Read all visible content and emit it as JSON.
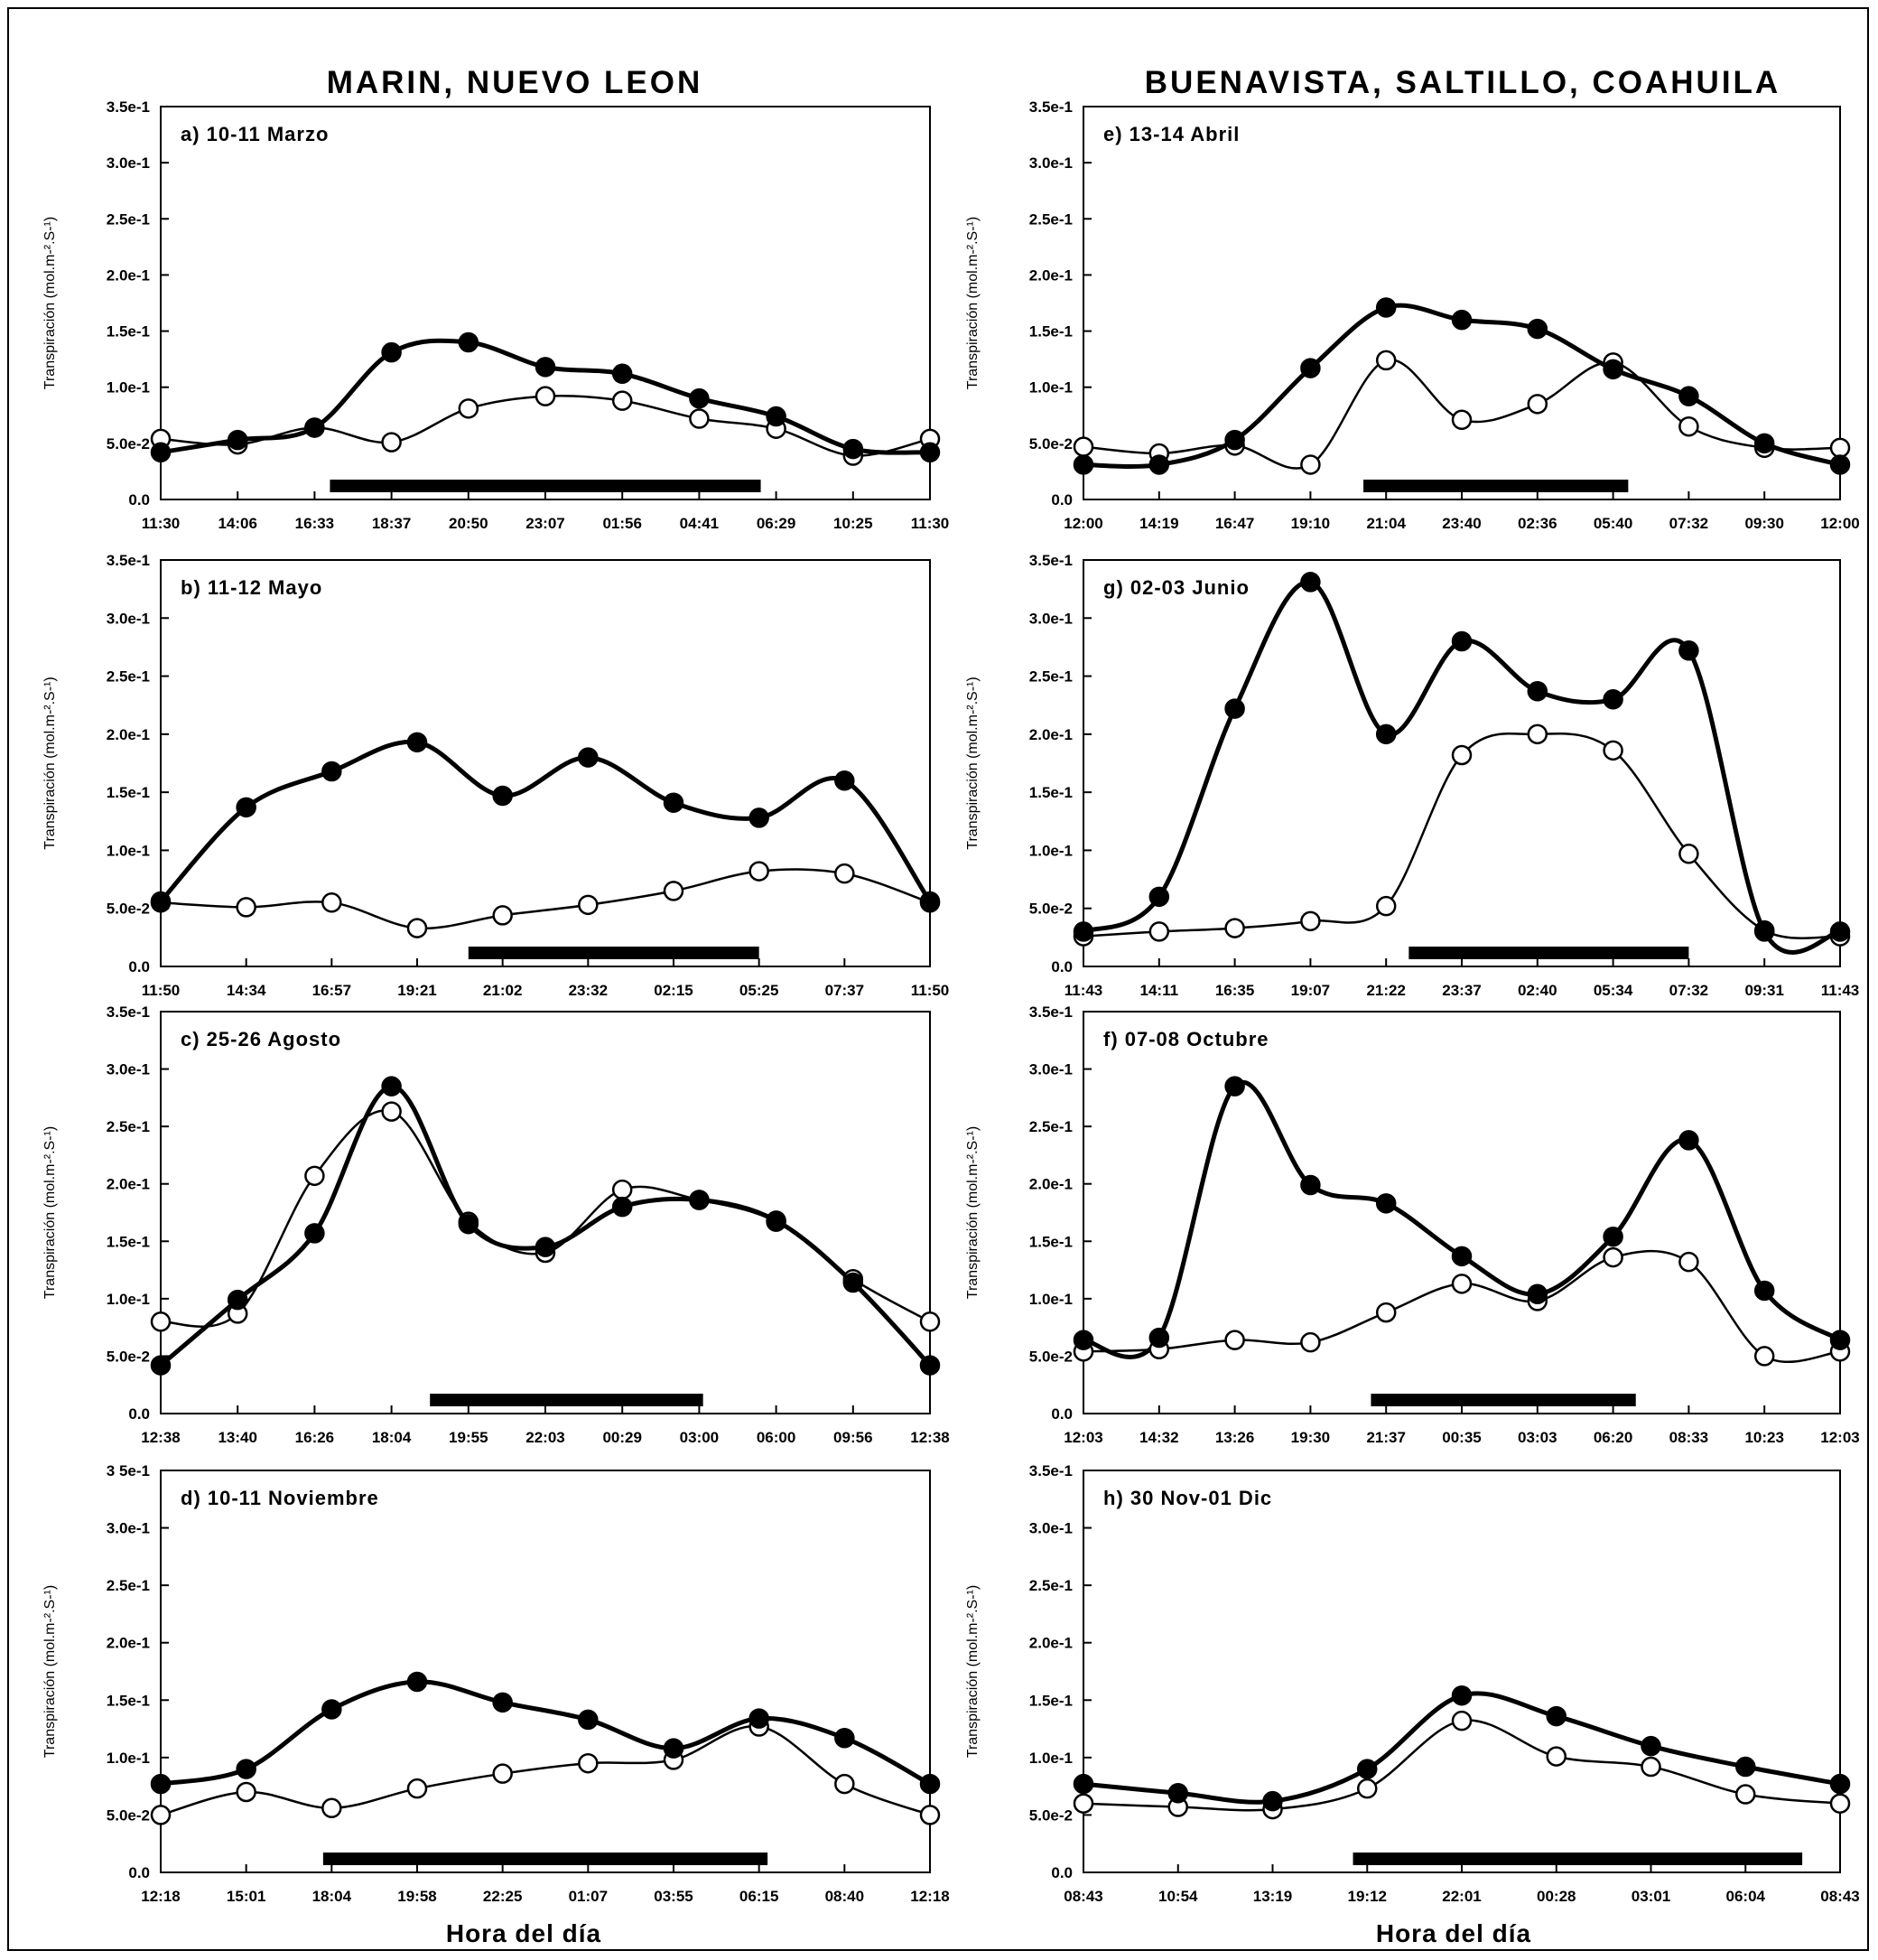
{
  "figure": {
    "left_column_title": "MARIN, NUEVO LEON",
    "right_column_title": "BUENAVISTA, SALTILLO, COAHUILA",
    "xlabel_left": "Hora del día",
    "xlabel_right": "Hora del día"
  },
  "chart_data": [
    {
      "id": "a",
      "type": "line",
      "title": "a) 10-11 Marzo",
      "ylabel": "Transpiración (mol.m-².S-¹)",
      "ylim": [
        0,
        0.35
      ],
      "yticks": [
        "0.0",
        "5.0e-2",
        "1.0e-1",
        "1.5e-1",
        "2.0e-1",
        "2.5e-1",
        "3.0e-1",
        "3.5e-1"
      ],
      "categories": [
        "11:30",
        "14:06",
        "16:33",
        "18:37",
        "20:50",
        "23:07",
        "01:56",
        "04:41",
        "06:29",
        "10:25",
        "11:30"
      ],
      "night_bar": [
        2.2,
        7.8
      ],
      "series": [
        {
          "marker": "filled",
          "values": [
            0.042,
            0.053,
            0.064,
            0.131,
            0.14,
            0.118,
            0.112,
            0.09,
            0.074,
            0.045,
            0.042
          ]
        },
        {
          "marker": "open",
          "values": [
            0.054,
            0.049,
            0.064,
            0.051,
            0.081,
            0.092,
            0.088,
            0.072,
            0.063,
            0.039,
            0.054
          ]
        }
      ]
    },
    {
      "id": "b",
      "type": "line",
      "title": "b) 11-12 Mayo",
      "ylabel": "Transpiración (mol.m-².S-¹)",
      "ylim": [
        0,
        0.35
      ],
      "yticks": [
        "0.0",
        "5.0e-2",
        "1.0e-1",
        "1.5e-1",
        "2.0e-1",
        "2.5e-1",
        "3.0e-1",
        "3.5e-1"
      ],
      "categories": [
        "11:50",
        "14:34",
        "16:57",
        "19:21",
        "21:02",
        "23:32",
        "02:15",
        "05:25",
        "07:37",
        "11:50"
      ],
      "night_bar": [
        3.6,
        7.0
      ],
      "series": [
        {
          "marker": "filled",
          "values": [
            0.056,
            0.137,
            0.168,
            0.193,
            0.147,
            0.18,
            0.141,
            0.128,
            0.16,
            0.056
          ]
        },
        {
          "marker": "open",
          "values": [
            0.055,
            0.051,
            0.055,
            0.033,
            0.044,
            0.053,
            0.065,
            0.082,
            0.08,
            0.055
          ]
        }
      ]
    },
    {
      "id": "c",
      "type": "line",
      "title": "c) 25-26 Agosto",
      "ylabel": "Transpiración (mol.m-².S-¹)",
      "ylim": [
        0,
        0.35
      ],
      "yticks": [
        "0.0",
        "5.0e-2",
        "1.0e-1",
        "1.5e-1",
        "2.0e-1",
        "2.5e-1",
        "3.0e-1",
        "3.5e-1"
      ],
      "categories": [
        "12:38",
        "13:40",
        "16:26",
        "18:04",
        "19:55",
        "22:03",
        "00:29",
        "03:00",
        "06:00",
        "09:56",
        "12:38"
      ],
      "night_bar": [
        3.5,
        7.05
      ],
      "series": [
        {
          "marker": "filled",
          "values": [
            0.042,
            0.099,
            0.157,
            0.285,
            0.165,
            0.145,
            0.18,
            0.186,
            0.168,
            0.114,
            0.042
          ]
        },
        {
          "marker": "open",
          "values": [
            0.08,
            0.087,
            0.207,
            0.263,
            0.167,
            0.14,
            0.195,
            0.186,
            0.167,
            0.117,
            0.08
          ]
        }
      ]
    },
    {
      "id": "d",
      "type": "line",
      "title": "d) 10-11 Noviembre",
      "ylabel": "Transpiración (mol.m-².S-¹)",
      "ylim": [
        0,
        0.35
      ],
      "yticks": [
        "0.0",
        "5.0e-2",
        "1.0e-1",
        "1.5e-1",
        "2.0e-1",
        "2.5e-1",
        "3.0e-1",
        "3 5e-1"
      ],
      "categories": [
        "12:18",
        "15:01",
        "18:04",
        "19:58",
        "22:25",
        "01:07",
        "03:55",
        "06:15",
        "08:40",
        "12:18"
      ],
      "night_bar": [
        1.9,
        7.1
      ],
      "series": [
        {
          "marker": "filled",
          "values": [
            0.077,
            0.09,
            0.142,
            0.166,
            0.148,
            0.133,
            0.108,
            0.134,
            0.117,
            0.077
          ]
        },
        {
          "marker": "open",
          "values": [
            0.05,
            0.07,
            0.056,
            0.073,
            0.086,
            0.095,
            0.098,
            0.127,
            0.077,
            0.05
          ]
        }
      ]
    },
    {
      "id": "e",
      "type": "line",
      "title": "e) 13-14 Abril",
      "ylabel": "Transpiración (mol.m-².S-¹)",
      "ylim": [
        0,
        0.35
      ],
      "yticks": [
        "0.0",
        "5.0e-2",
        "1.0e-1",
        "1.5e-1",
        "2.0e-1",
        "2.5e-1",
        "3.0e-1",
        "3.5e-1"
      ],
      "categories": [
        "12:00",
        "14:19",
        "16:47",
        "19:10",
        "21:04",
        "23:40",
        "02:36",
        "05:40",
        "07:32",
        "09:30",
        "12:00"
      ],
      "night_bar": [
        3.7,
        7.2
      ],
      "series": [
        {
          "marker": "filled",
          "values": [
            0.031,
            0.031,
            0.053,
            0.117,
            0.171,
            0.16,
            0.152,
            0.116,
            0.092,
            0.05,
            0.031
          ]
        },
        {
          "marker": "open",
          "values": [
            0.047,
            0.041,
            0.048,
            0.031,
            0.124,
            0.071,
            0.085,
            0.122,
            0.065,
            0.046,
            0.046
          ]
        }
      ]
    },
    {
      "id": "g",
      "type": "line",
      "title": "g)  02-03 Junio",
      "ylabel": "Transpiración (mol.m-².S-¹)",
      "ylim": [
        0,
        0.35
      ],
      "yticks": [
        "0.0",
        "5.0e-2",
        "1.0e-1",
        "1.5e-1",
        "2.0e-1",
        "2.5e-1",
        "3.0e-1",
        "3.5e-1"
      ],
      "categories": [
        "11:43",
        "14:11",
        "16:35",
        "19:07",
        "21:22",
        "23:37",
        "02:40",
        "05:34",
        "07:32",
        "09:31",
        "11:43"
      ],
      "night_bar": [
        4.3,
        8.0
      ],
      "series": [
        {
          "marker": "filled",
          "values": [
            0.03,
            0.06,
            0.222,
            0.331,
            0.2,
            0.28,
            0.237,
            0.23,
            0.272,
            0.03,
            0.03
          ]
        },
        {
          "marker": "open",
          "values": [
            0.026,
            0.03,
            0.033,
            0.039,
            0.052,
            0.182,
            0.2,
            0.186,
            0.097,
            0.031,
            0.026
          ]
        }
      ]
    },
    {
      "id": "f",
      "type": "line",
      "title": "f)  07-08 Octubre",
      "ylabel": "Transpiración (mol.m-².S-¹)",
      "ylim": [
        0,
        0.35
      ],
      "yticks": [
        "0.0",
        "5.0e-2",
        "1.0e-1",
        "1.5e-1",
        "2.0e-1",
        "2.5e-1",
        "3.0e-1",
        "3.5e-1"
      ],
      "categories": [
        "12:03",
        "14:32",
        "13:26",
        "19:30",
        "21:37",
        "00:35",
        "03:03",
        "06:20",
        "08:33",
        "10:23",
        "12:03"
      ],
      "night_bar": [
        3.8,
        7.3
      ],
      "series": [
        {
          "marker": "filled",
          "values": [
            0.064,
            0.066,
            0.285,
            0.199,
            0.183,
            0.137,
            0.104,
            0.154,
            0.238,
            0.107,
            0.064
          ]
        },
        {
          "marker": "open",
          "values": [
            0.054,
            0.056,
            0.064,
            0.062,
            0.088,
            0.113,
            0.098,
            0.136,
            0.132,
            0.05,
            0.054
          ]
        }
      ]
    },
    {
      "id": "h",
      "type": "line",
      "title": "h) 30 Nov-01 Dic",
      "ylabel": "Transpiración (mol.m-².S-¹)",
      "ylim": [
        0,
        0.35
      ],
      "yticks": [
        "0.0",
        "5.0e-2",
        "1.0e-1",
        "1.5e-1",
        "2.0e-1",
        "2.5e-1",
        "3.0e-1",
        "3.5e-1"
      ],
      "categories": [
        "08:43",
        "10:54",
        "13:19",
        "19:12",
        "22:01",
        "00:28",
        "03:01",
        "06:04",
        "08:43"
      ],
      "night_bar": [
        2.85,
        7.6
      ],
      "series": [
        {
          "marker": "filled",
          "values": [
            0.077,
            0.069,
            0.062,
            0.09,
            0.154,
            0.136,
            0.11,
            0.092,
            0.077
          ]
        },
        {
          "marker": "open",
          "values": [
            0.06,
            0.057,
            0.055,
            0.073,
            0.132,
            0.101,
            0.092,
            0.068,
            0.06
          ]
        }
      ]
    }
  ]
}
